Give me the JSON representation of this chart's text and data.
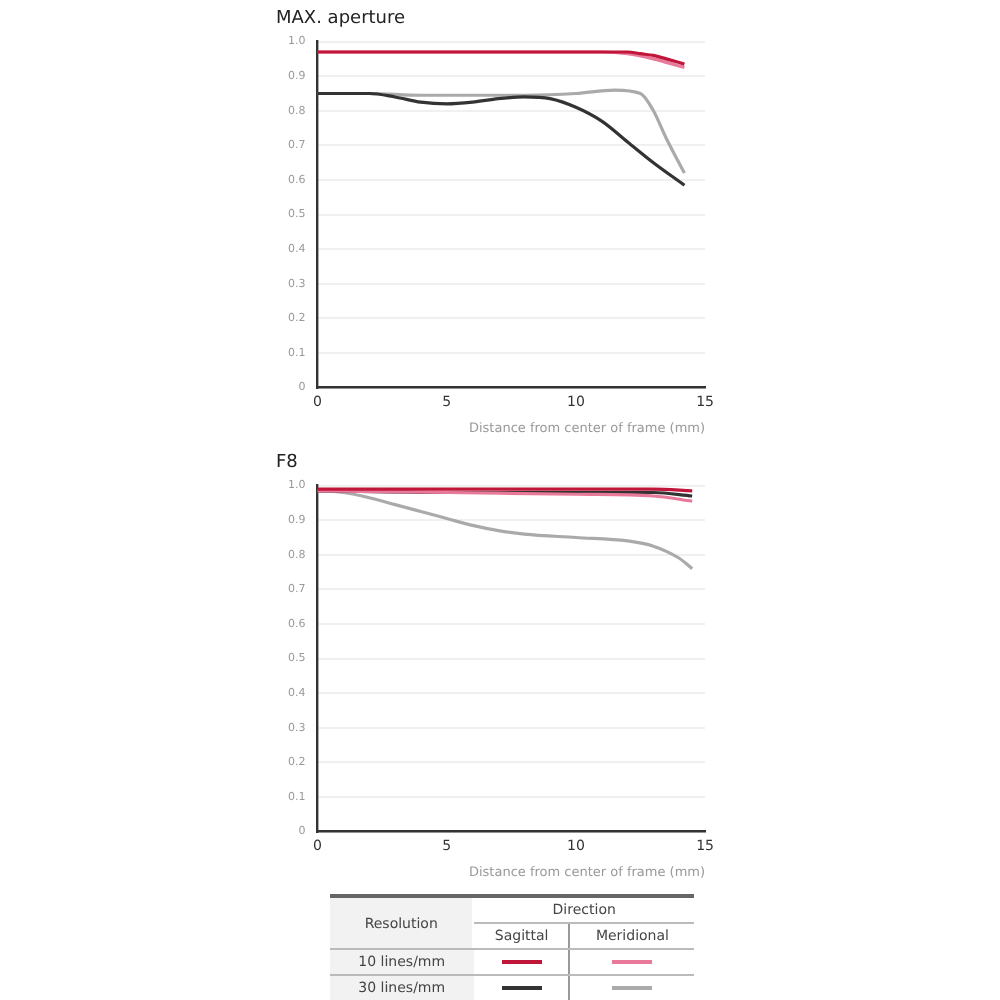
{
  "chart_data": [
    {
      "type": "line",
      "title": "MAX. aperture",
      "xlabel": "Distance from center of frame (mm)",
      "xlim": [
        0,
        15
      ],
      "xticks": [
        0,
        5,
        10,
        15
      ],
      "ylim": [
        0,
        1
      ],
      "yticks": [
        0,
        0.1,
        0.2,
        0.3,
        0.4,
        0.5,
        0.6,
        0.7,
        0.8,
        0.9,
        {
          "value": 1,
          "label": "1.0"
        }
      ],
      "grid": "y",
      "legend": false,
      "marker": "none",
      "line_style": "solid",
      "series": [
        {
          "color": "#c0163a",
          "x": [
            0,
            2,
            4,
            6,
            8,
            10,
            11,
            12,
            12.5,
            13,
            13.5,
            14.2
          ],
          "values": [
            0.97,
            0.97,
            0.97,
            0.97,
            0.97,
            0.97,
            0.97,
            0.97,
            0.965,
            0.96,
            0.95,
            0.935
          ]
        },
        {
          "color": "#e8799a",
          "x": [
            0,
            2,
            4,
            6,
            8,
            10,
            11,
            12,
            13,
            13.5,
            14.2
          ],
          "values": [
            0.97,
            0.97,
            0.97,
            0.97,
            0.97,
            0.97,
            0.97,
            0.965,
            0.95,
            0.94,
            0.925
          ]
        },
        {
          "color": "#333333",
          "x": [
            0,
            2,
            3,
            4,
            5,
            6,
            7,
            8,
            9,
            10,
            11,
            12,
            13,
            14.2
          ],
          "values": [
            0.85,
            0.85,
            0.84,
            0.825,
            0.82,
            0.825,
            0.835,
            0.84,
            0.835,
            0.81,
            0.77,
            0.71,
            0.65,
            0.585
          ]
        },
        {
          "color": "#aaaaaa",
          "x": [
            0,
            2,
            4,
            6,
            8,
            10,
            11.5,
            12.5,
            13,
            13.5,
            14.2
          ],
          "values": [
            0.85,
            0.85,
            0.845,
            0.845,
            0.845,
            0.85,
            0.86,
            0.85,
            0.8,
            0.72,
            0.62
          ]
        }
      ]
    },
    {
      "type": "line",
      "title": "F8",
      "xlabel": "Distance from center of frame (mm)",
      "xlim": [
        0,
        15
      ],
      "xticks": [
        0,
        5,
        10,
        15
      ],
      "ylim": [
        0,
        1
      ],
      "yticks": [
        0,
        0.1,
        0.2,
        0.3,
        0.4,
        0.5,
        0.6,
        0.7,
        0.8,
        0.9,
        {
          "value": 1,
          "label": "1.0"
        }
      ],
      "grid": "y",
      "legend": false,
      "marker": "none",
      "line_style": "solid",
      "series": [
        {
          "color": "#c0163a",
          "x": [
            0,
            5,
            10,
            13,
            14.5
          ],
          "values": [
            0.99,
            0.99,
            0.99,
            0.99,
            0.985
          ]
        },
        {
          "color": "#e8799a",
          "x": [
            0,
            5,
            10,
            13,
            14.5
          ],
          "values": [
            0.985,
            0.98,
            0.975,
            0.97,
            0.955
          ]
        },
        {
          "color": "#333333",
          "x": [
            0,
            5,
            10,
            13,
            14.5
          ],
          "values": [
            0.985,
            0.98,
            0.98,
            0.98,
            0.97
          ]
        },
        {
          "color": "#aaaaaa",
          "x": [
            0,
            1,
            2,
            3,
            4,
            5,
            6,
            7,
            8,
            10,
            12,
            13,
            14,
            14.5
          ],
          "values": [
            0.985,
            0.98,
            0.965,
            0.945,
            0.925,
            0.905,
            0.885,
            0.87,
            0.86,
            0.85,
            0.84,
            0.825,
            0.79,
            0.76
          ]
        }
      ]
    },
    {
      "type": "other",
      "annotations": [
        "Resolution",
        "Direction",
        "Sagittal",
        "Meridional",
        "10 lines/mm",
        "30 lines/mm"
      ]
    }
  ]
}
